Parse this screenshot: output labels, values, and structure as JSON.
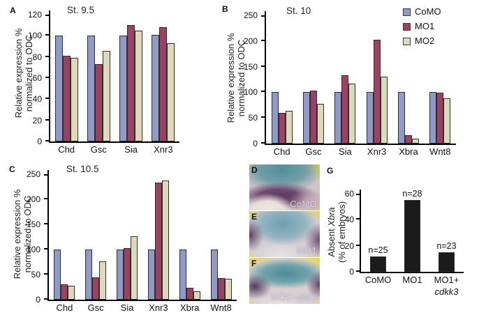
{
  "colors": {
    "como": "#8f9ac7",
    "mo1": "#9a4263",
    "mo2": "#ded9ba",
    "g_bars": "#1b1b1b",
    "axis": "#000000",
    "embryo_background_yellow": "#e9d83f",
    "embryo_stain_teal": "#5f98a2",
    "embryo_stain_purple": "#5c4068"
  },
  "legend": {
    "items": [
      {
        "label": "CoMO",
        "color": "#8f9ac7"
      },
      {
        "label": "MO1",
        "color": "#9a4263"
      },
      {
        "label": "MO2",
        "color": "#ded9ba"
      }
    ]
  },
  "embryo_panels": [
    {
      "letter": "D",
      "label": "CoMO",
      "label_italic": ""
    },
    {
      "letter": "E",
      "label": "MO1",
      "label_italic": ""
    },
    {
      "letter": "F",
      "label": "MO1+",
      "label_italic": "dkk3"
    }
  ],
  "chart_data": [
    {
      "id": "A",
      "type": "bar",
      "panel_letter": "A",
      "title": "St. 9.5",
      "ylabel_lines": [
        [
          {
            "t": "Relative expression %",
            "i": false
          }
        ],
        [
          {
            "t": "normalized to ODC",
            "i": false
          }
        ]
      ],
      "ylim": [
        0,
        120
      ],
      "yticks": [
        0,
        20,
        40,
        60,
        80,
        100,
        120
      ],
      "categories": [
        "Chd",
        "Gsc",
        "Sia",
        "Xnr3"
      ],
      "series": [
        {
          "name": "CoMO",
          "color": "#8f9ac7",
          "values": [
            100,
            100,
            100,
            101
          ]
        },
        {
          "name": "MO1",
          "color": "#9a4263",
          "values": [
            81,
            73,
            110,
            108
          ]
        },
        {
          "name": "MO2",
          "color": "#ded9ba",
          "values": [
            79,
            86,
            105,
            93
          ]
        }
      ],
      "legend_position": "none",
      "grid": false
    },
    {
      "id": "B",
      "type": "bar",
      "panel_letter": "B",
      "title": "St. 10",
      "ylabel_lines": [
        [
          {
            "t": "Relative expression %",
            "i": false
          }
        ],
        [
          {
            "t": "normalized to ODC",
            "i": false
          }
        ]
      ],
      "ylim": [
        0,
        250
      ],
      "yticks": [
        0,
        50,
        100,
        150,
        200,
        250
      ],
      "categories": [
        "Chd",
        "Gsc",
        "Sia",
        "Xnr3",
        "Xbra",
        "Wnt8"
      ],
      "series": [
        {
          "name": "CoMO",
          "color": "#8f9ac7",
          "values": [
            100,
            100,
            100,
            100,
            100,
            100
          ]
        },
        {
          "name": "MO1",
          "color": "#9a4263",
          "values": [
            60,
            103,
            133,
            202,
            16,
            99
          ]
        },
        {
          "name": "MO2",
          "color": "#ded9ba",
          "values": [
            64,
            78,
            117,
            130,
            10,
            88
          ]
        }
      ],
      "legend_position": "top-right",
      "grid": false
    },
    {
      "id": "C",
      "type": "bar",
      "panel_letter": "C",
      "title": "St. 10.5",
      "ylabel_lines": [
        [
          {
            "t": "Relative expression %",
            "i": false
          }
        ],
        [
          {
            "t": "normalized to ODC",
            "i": false
          }
        ]
      ],
      "ylim": [
        0,
        250
      ],
      "yticks": [
        0,
        50,
        100,
        150,
        200,
        250
      ],
      "categories": [
        "Chd",
        "Gsc",
        "Sia",
        "Xnr3",
        "Xbra",
        "Wnt8"
      ],
      "series": [
        {
          "name": "CoMO",
          "color": "#8f9ac7",
          "values": [
            100,
            100,
            100,
            100,
            100,
            100
          ]
        },
        {
          "name": "MO1",
          "color": "#9a4263",
          "values": [
            30,
            44,
            103,
            233,
            24,
            43
          ]
        },
        {
          "name": "MO2",
          "color": "#ded9ba",
          "values": [
            28,
            76,
            126,
            238,
            17,
            42
          ]
        }
      ],
      "legend_position": "none",
      "grid": false
    },
    {
      "id": "G",
      "type": "bar",
      "panel_letter": "G",
      "title": "",
      "ylabel_lines": [
        [
          {
            "t": "Absent ",
            "i": false
          },
          {
            "t": "Xbra",
            "i": true
          }
        ],
        [
          {
            "t": "(% of embryos)",
            "i": false
          }
        ]
      ],
      "ylim": [
        0,
        60
      ],
      "yticks": [
        0,
        20,
        40,
        60
      ],
      "categories": [
        "CoMO",
        "MO1",
        "MO1+"
      ],
      "categories_line2": [
        "",
        "",
        "cdkk3"
      ],
      "series": [
        {
          "name": "embryos",
          "color": "#1b1b1b",
          "values": [
            12,
            55,
            15
          ],
          "bar_labels": [
            "n=25",
            "n=28",
            "n=23"
          ]
        }
      ],
      "legend_position": "none",
      "grid": false
    }
  ]
}
